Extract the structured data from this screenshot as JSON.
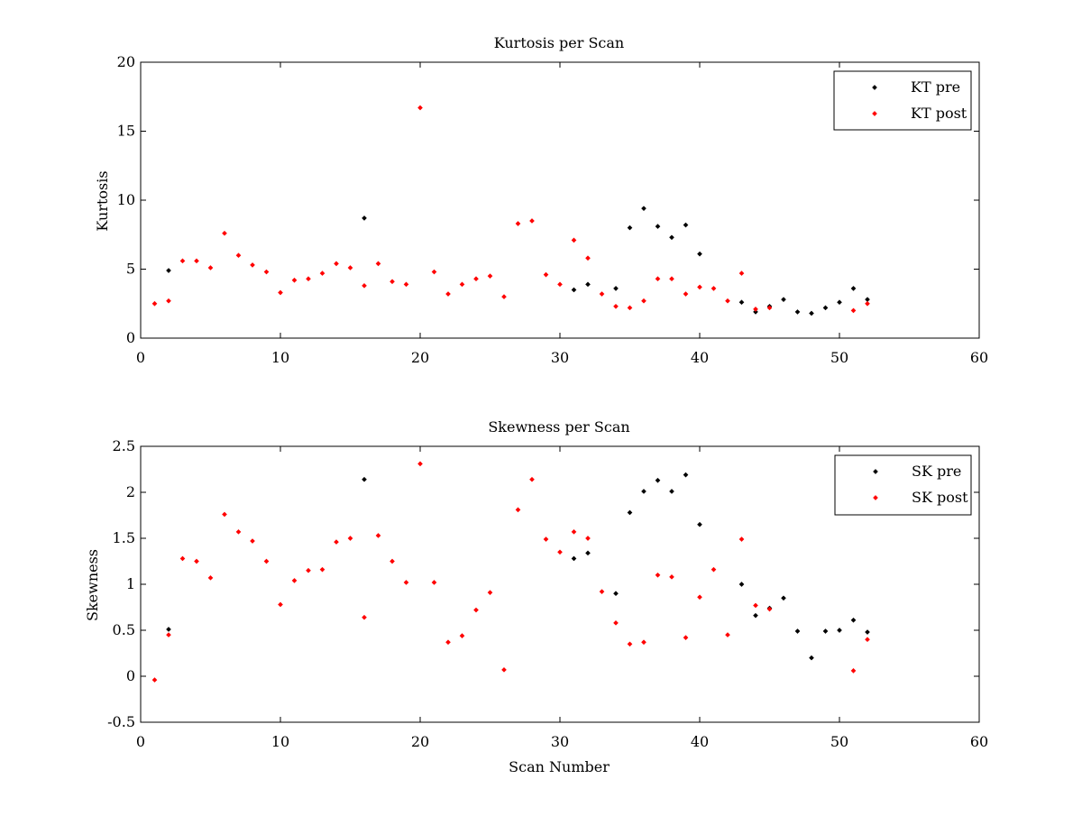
{
  "chart_data": [
    {
      "type": "scatter",
      "title": "Kurtosis per Scan",
      "xlabel": "",
      "ylabel": "Kurtosis",
      "xlim": [
        0,
        60
      ],
      "ylim": [
        0,
        20
      ],
      "xticks": [
        0,
        10,
        20,
        30,
        40,
        50,
        60
      ],
      "yticks": [
        0,
        5,
        10,
        15,
        20
      ],
      "xtick_labels": [
        "0",
        "10",
        "20",
        "30",
        "40",
        "50",
        "60"
      ],
      "ytick_labels": [
        "0",
        "5",
        "10",
        "15",
        "20"
      ],
      "grid": false,
      "legend_position": "top-right",
      "series": [
        {
          "name": "KT pre",
          "color": "#000000",
          "x": [
            2,
            16,
            31,
            32,
            34,
            35,
            36,
            37,
            38,
            39,
            40,
            43,
            44,
            45,
            46,
            47,
            48,
            49,
            50,
            51,
            52
          ],
          "y": [
            4.9,
            8.7,
            3.5,
            3.9,
            3.6,
            8.0,
            9.4,
            8.1,
            7.3,
            8.2,
            6.1,
            2.6,
            1.9,
            2.3,
            2.8,
            1.9,
            1.8,
            2.2,
            2.6,
            3.6,
            2.8
          ]
        },
        {
          "name": "KT post",
          "color": "#ff0000",
          "x": [
            1,
            2,
            3,
            4,
            5,
            6,
            7,
            8,
            9,
            10,
            11,
            12,
            13,
            14,
            15,
            16,
            17,
            18,
            19,
            20,
            21,
            22,
            23,
            24,
            25,
            26,
            27,
            28,
            29,
            30,
            31,
            32,
            33,
            34,
            35,
            36,
            37,
            38,
            39,
            40,
            41,
            42,
            43,
            44,
            45,
            51,
            52
          ],
          "y": [
            2.5,
            2.7,
            5.6,
            5.6,
            5.1,
            7.6,
            6.0,
            5.3,
            4.8,
            3.3,
            4.2,
            4.3,
            4.7,
            5.4,
            5.1,
            3.8,
            5.4,
            4.1,
            3.9,
            16.7,
            4.8,
            3.2,
            3.9,
            4.3,
            4.5,
            3.0,
            8.3,
            8.5,
            4.6,
            3.9,
            7.1,
            5.8,
            3.2,
            2.3,
            2.2,
            2.7,
            4.3,
            4.3,
            3.2,
            3.7,
            3.6,
            2.7,
            4.7,
            2.1,
            2.2,
            2.0,
            2.5
          ]
        }
      ]
    },
    {
      "type": "scatter",
      "title": "Skewness per Scan",
      "xlabel": "Scan Number",
      "ylabel": "Skewness",
      "xlim": [
        0,
        60
      ],
      "ylim": [
        -0.5,
        2.5
      ],
      "xticks": [
        0,
        10,
        20,
        30,
        40,
        50,
        60
      ],
      "yticks": [
        -0.5,
        0,
        0.5,
        1,
        1.5,
        2,
        2.5
      ],
      "xtick_labels": [
        "0",
        "10",
        "20",
        "30",
        "40",
        "50",
        "60"
      ],
      "ytick_labels": [
        "-0.5",
        "0",
        "0.5",
        "1",
        "1.5",
        "2",
        "2.5"
      ],
      "grid": false,
      "legend_position": "top-right",
      "series": [
        {
          "name": "SK pre",
          "color": "#000000",
          "x": [
            2,
            16,
            31,
            32,
            34,
            35,
            36,
            37,
            38,
            39,
            40,
            43,
            44,
            45,
            46,
            47,
            48,
            49,
            50,
            51,
            52
          ],
          "y": [
            0.51,
            2.14,
            1.28,
            1.34,
            0.9,
            1.78,
            2.01,
            2.13,
            2.01,
            2.19,
            1.65,
            1.0,
            0.66,
            0.74,
            0.85,
            0.49,
            0.2,
            0.49,
            0.5,
            0.61,
            0.48
          ]
        },
        {
          "name": "SK post",
          "color": "#ff0000",
          "x": [
            1,
            2,
            3,
            4,
            5,
            6,
            7,
            8,
            9,
            10,
            11,
            12,
            13,
            14,
            15,
            16,
            17,
            18,
            19,
            20,
            21,
            22,
            23,
            24,
            25,
            26,
            27,
            28,
            29,
            30,
            31,
            32,
            33,
            34,
            35,
            36,
            37,
            38,
            39,
            40,
            41,
            42,
            43,
            44,
            45,
            51,
            52
          ],
          "y": [
            -0.04,
            0.45,
            1.28,
            1.25,
            1.07,
            1.76,
            1.57,
            1.47,
            1.25,
            0.78,
            1.04,
            1.15,
            1.16,
            1.46,
            1.5,
            0.64,
            1.53,
            1.25,
            1.02,
            2.31,
            1.02,
            0.37,
            0.44,
            0.72,
            0.91,
            0.07,
            1.81,
            2.14,
            1.49,
            1.35,
            1.57,
            1.5,
            0.92,
            0.58,
            0.35,
            0.37,
            1.1,
            1.08,
            0.42,
            0.86,
            1.16,
            0.45,
            1.49,
            0.77,
            0.73,
            0.06,
            0.4
          ]
        }
      ]
    }
  ]
}
